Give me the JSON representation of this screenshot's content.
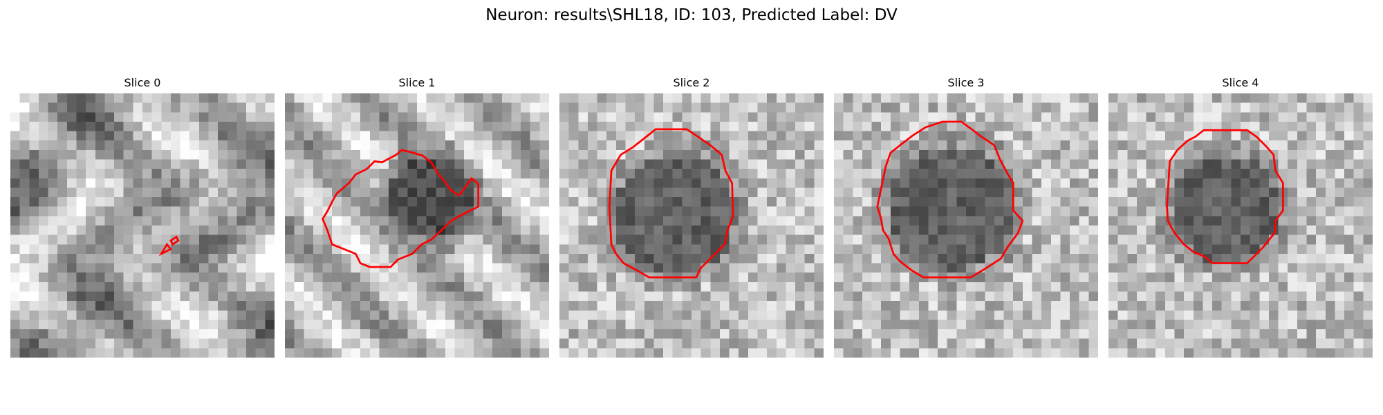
{
  "figure": {
    "title": "Neuron: results\\SHL18, ID: 103, Predicted Label: DV"
  },
  "panels": [
    {
      "title": "Slice 0",
      "contour_color": "#ff0000",
      "scene": "textured",
      "contours": [
        [
          [
            16,
            17
          ],
          [
            17,
            16.5
          ],
          [
            16.6,
            16
          ]
        ],
        [
          [
            17.2,
            16
          ],
          [
            17.8,
            15.6
          ],
          [
            17.6,
            15.2
          ],
          [
            17,
            15.6
          ]
        ]
      ]
    },
    {
      "title": "Slice 1",
      "contour_color": "#ff0000",
      "scene": "offcenter",
      "contours": [
        [
          [
            4.5,
            14.5
          ],
          [
            5,
            16
          ],
          [
            7.5,
            17
          ],
          [
            8,
            18
          ],
          [
            9,
            18.4
          ],
          [
            11.2,
            18.4
          ],
          [
            12,
            17.6
          ],
          [
            13.5,
            17
          ],
          [
            14.5,
            16
          ],
          [
            15.5,
            15.5
          ],
          [
            16.5,
            14.6
          ],
          [
            17.5,
            13.6
          ],
          [
            18.5,
            13
          ],
          [
            20.5,
            12
          ],
          [
            20.5,
            9.6
          ],
          [
            19.8,
            9
          ],
          [
            18.5,
            10.8
          ],
          [
            17.6,
            10.3
          ],
          [
            17,
            9.4
          ],
          [
            16.3,
            8.6
          ],
          [
            15.5,
            7.3
          ],
          [
            14.6,
            6.6
          ],
          [
            13.6,
            6.3
          ],
          [
            12.4,
            6
          ],
          [
            11.8,
            6.5
          ],
          [
            10.3,
            7.3
          ],
          [
            9.5,
            7.2
          ],
          [
            8.7,
            8
          ],
          [
            7.5,
            8.6
          ],
          [
            6.8,
            9.5
          ],
          [
            5.5,
            10.6
          ],
          [
            5,
            11.5
          ],
          [
            4.5,
            12.5
          ],
          [
            4,
            13.3
          ]
        ]
      ]
    },
    {
      "title": "Slice 2",
      "contour_color": "#ff0000",
      "scene": "round",
      "center": [
        12.3,
        12.9
      ],
      "radius": 7,
      "contours": [
        [
          [
            5.5,
            8.2
          ],
          [
            6.5,
            6.5
          ],
          [
            7.8,
            5.7
          ],
          [
            9.2,
            4.6
          ],
          [
            10.2,
            3.8
          ],
          [
            13.5,
            3.8
          ],
          [
            14.7,
            4.6
          ],
          [
            16,
            5.5
          ],
          [
            17.2,
            6.5
          ],
          [
            17.6,
            8.2
          ],
          [
            18.3,
            9.5
          ],
          [
            18.4,
            13
          ],
          [
            17.8,
            14.6
          ],
          [
            17.5,
            16
          ],
          [
            16.2,
            17.3
          ],
          [
            15,
            18.5
          ],
          [
            14.5,
            19.5
          ],
          [
            9.5,
            19.5
          ],
          [
            8.3,
            18.8
          ],
          [
            6.8,
            18
          ],
          [
            6,
            17
          ],
          [
            5.5,
            16
          ],
          [
            5.3,
            12
          ]
        ]
      ]
    },
    {
      "title": "Slice 3",
      "contour_color": "#ff0000",
      "scene": "round",
      "center": [
        12.5,
        12.2
      ],
      "radius": 7.2,
      "contours": [
        [
          [
            5.5,
            7.7
          ],
          [
            6,
            6.3
          ],
          [
            7,
            5.5
          ],
          [
            8.3,
            4.5
          ],
          [
            9.7,
            3.6
          ],
          [
            11.5,
            3
          ],
          [
            13.5,
            3
          ],
          [
            14.6,
            3.8
          ],
          [
            15.5,
            4.5
          ],
          [
            17,
            5.5
          ],
          [
            17.6,
            7
          ],
          [
            18.4,
            8.5
          ],
          [
            19,
            9.5
          ],
          [
            19,
            12.4
          ],
          [
            20,
            13.5
          ],
          [
            19.5,
            14.8
          ],
          [
            18.4,
            16.3
          ],
          [
            17.7,
            17.5
          ],
          [
            16,
            18.6
          ],
          [
            14.5,
            19.5
          ],
          [
            9.5,
            19.5
          ],
          [
            8.3,
            18.8
          ],
          [
            7,
            17.8
          ],
          [
            6.3,
            17
          ],
          [
            5.8,
            15.4
          ],
          [
            5.2,
            14.5
          ],
          [
            5,
            13.3
          ],
          [
            4.6,
            12
          ]
        ]
      ]
    },
    {
      "title": "Slice 4",
      "contour_color": "#ff0000",
      "scene": "round",
      "center": [
        12.4,
        12.2
      ],
      "radius": 6.3,
      "contours": [
        [
          [
            6.5,
            7.2
          ],
          [
            7.3,
            6
          ],
          [
            8.4,
            5
          ],
          [
            9.2,
            4.6
          ],
          [
            10.1,
            3.9
          ],
          [
            14.7,
            3.9
          ],
          [
            15.7,
            4.6
          ],
          [
            16.7,
            5.6
          ],
          [
            17.5,
            6.5
          ],
          [
            17.7,
            8.2
          ],
          [
            18.5,
            9.5
          ],
          [
            18.5,
            12.4
          ],
          [
            17.7,
            13.5
          ],
          [
            17.6,
            14.8
          ],
          [
            16.4,
            16.3
          ],
          [
            15.5,
            17.2
          ],
          [
            14.7,
            18
          ],
          [
            11,
            18
          ],
          [
            10.2,
            17.3
          ],
          [
            9,
            16.8
          ],
          [
            8,
            16
          ],
          [
            7,
            14.8
          ],
          [
            6.3,
            13.5
          ],
          [
            6.2,
            12
          ]
        ]
      ]
    }
  ]
}
